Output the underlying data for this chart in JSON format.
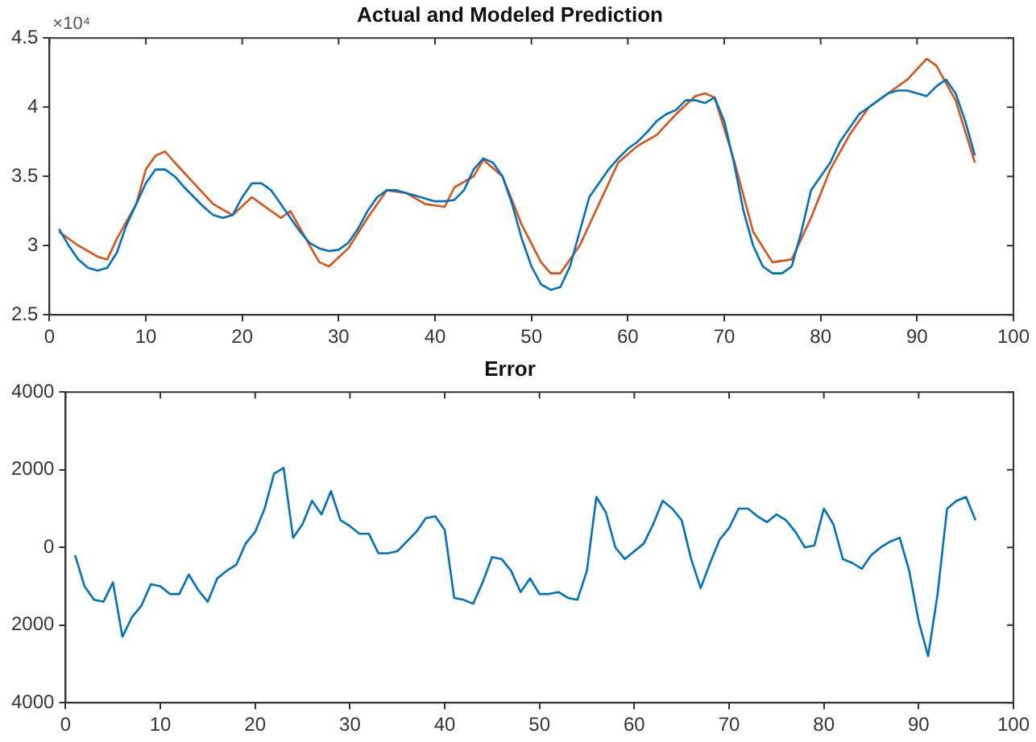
{
  "chart_data": [
    {
      "type": "line",
      "title": "Actual and Modeled Prediction",
      "xlim": [
        0,
        100
      ],
      "xticks": [
        0,
        10,
        20,
        30,
        40,
        50,
        60,
        70,
        80,
        90,
        100
      ],
      "ylim": [
        2.5,
        4.5
      ],
      "yticks": [
        2.5,
        3,
        3.5,
        4,
        4.5
      ],
      "annotations": [
        "×10⁴"
      ],
      "grid": false,
      "series": [
        {
          "color": "#0072bd",
          "x": [
            1,
            2,
            3,
            4,
            5,
            6,
            7,
            8,
            9,
            10,
            11,
            12,
            13,
            14,
            15,
            16,
            17,
            18,
            19,
            20,
            21,
            22,
            23,
            24,
            25,
            26,
            27,
            28,
            29,
            30,
            31,
            32,
            33,
            34,
            35,
            36,
            37,
            38,
            39,
            40,
            41,
            42,
            43,
            44,
            45,
            46,
            47,
            48,
            49,
            50,
            51,
            52,
            53,
            54,
            55,
            56,
            57,
            58,
            59,
            60,
            61,
            62,
            63,
            64,
            65,
            66,
            67,
            68,
            69,
            70,
            71,
            72,
            73,
            74,
            75,
            76,
            77,
            78,
            79,
            80,
            81,
            82,
            83,
            84,
            85,
            86,
            87,
            88,
            89,
            90,
            91,
            92,
            93,
            94,
            95,
            96
          ],
          "values": [
            3.12,
            3.0,
            2.9,
            2.84,
            2.82,
            2.84,
            2.95,
            3.15,
            3.3,
            3.45,
            3.55,
            3.55,
            3.5,
            3.42,
            3.35,
            3.28,
            3.22,
            3.2,
            3.22,
            3.35,
            3.45,
            3.45,
            3.4,
            3.3,
            3.2,
            3.1,
            3.02,
            2.98,
            2.96,
            2.97,
            3.02,
            3.12,
            3.25,
            3.35,
            3.4,
            3.4,
            3.38,
            3.36,
            3.34,
            3.32,
            3.32,
            3.33,
            3.4,
            3.55,
            3.63,
            3.6,
            3.5,
            3.3,
            3.05,
            2.85,
            2.72,
            2.68,
            2.7,
            2.85,
            3.1,
            3.35,
            3.45,
            3.55,
            3.63,
            3.7,
            3.75,
            3.82,
            3.9,
            3.95,
            3.98,
            4.05,
            4.05,
            4.03,
            4.07,
            3.9,
            3.6,
            3.25,
            3.0,
            2.85,
            2.8,
            2.8,
            2.85,
            3.1,
            3.4,
            3.5,
            3.6,
            3.75,
            3.85,
            3.95,
            4.0,
            4.05,
            4.1,
            4.12,
            4.12,
            4.1,
            4.08,
            4.15,
            4.2,
            4.1,
            3.9,
            3.65
          ]
        },
        {
          "color": "#d95319",
          "x": [
            1,
            3,
            5,
            6,
            7,
            9,
            10,
            11,
            12,
            13,
            15,
            17,
            19,
            21,
            22,
            24,
            25,
            27,
            28,
            29,
            31,
            33,
            35,
            37,
            39,
            41,
            42,
            44,
            45,
            47,
            49,
            51,
            52,
            53,
            55,
            57,
            59,
            61,
            63,
            65,
            67,
            68,
            69,
            71,
            73,
            75,
            77,
            79,
            81,
            83,
            85,
            87,
            89,
            91,
            92,
            94,
            96
          ],
          "values": [
            3.1,
            3.0,
            2.92,
            2.9,
            3.05,
            3.3,
            3.55,
            3.65,
            3.68,
            3.6,
            3.45,
            3.3,
            3.22,
            3.35,
            3.3,
            3.2,
            3.25,
            3.0,
            2.88,
            2.85,
            2.98,
            3.2,
            3.4,
            3.38,
            3.3,
            3.28,
            3.42,
            3.5,
            3.62,
            3.5,
            3.15,
            2.88,
            2.8,
            2.8,
            3.0,
            3.3,
            3.6,
            3.72,
            3.8,
            3.95,
            4.08,
            4.1,
            4.07,
            3.62,
            3.1,
            2.88,
            2.9,
            3.2,
            3.55,
            3.8,
            4.0,
            4.1,
            4.2,
            4.35,
            4.3,
            4.05,
            3.6
          ]
        }
      ]
    },
    {
      "type": "line",
      "title": "Error",
      "xlim": [
        0,
        100
      ],
      "xticks": [
        0,
        10,
        20,
        30,
        40,
        50,
        60,
        70,
        80,
        90,
        100
      ],
      "ylim": [
        -4000,
        4000
      ],
      "yticks": [
        {
          "value": -4000,
          "label": "4000"
        },
        {
          "value": -2000,
          "label": "2000"
        },
        0,
        2000,
        4000
      ],
      "grid": false,
      "series": [
        {
          "color": "#0072bd",
          "x": [
            1,
            2,
            3,
            4,
            5,
            6,
            7,
            8,
            9,
            10,
            11,
            12,
            13,
            14,
            15,
            16,
            17,
            18,
            19,
            20,
            21,
            22,
            23,
            24,
            25,
            26,
            27,
            28,
            29,
            30,
            31,
            32,
            33,
            34,
            35,
            36,
            37,
            38,
            39,
            40,
            41,
            42,
            43,
            44,
            45,
            46,
            47,
            48,
            49,
            50,
            51,
            52,
            53,
            54,
            55,
            56,
            57,
            58,
            59,
            60,
            61,
            62,
            63,
            64,
            65,
            66,
            67,
            68,
            69,
            70,
            71,
            72,
            73,
            74,
            75,
            76,
            77,
            78,
            79,
            80,
            81,
            82,
            83,
            84,
            85,
            86,
            87,
            88,
            89,
            90,
            91,
            92,
            93,
            94,
            95,
            96
          ],
          "values": [
            -200,
            -1000,
            -1350,
            -1400,
            -900,
            -2300,
            -1800,
            -1500,
            -950,
            -1000,
            -1200,
            -1200,
            -700,
            -1100,
            -1400,
            -800,
            -600,
            -450,
            100,
            400,
            1000,
            1900,
            2050,
            250,
            600,
            1200,
            850,
            1450,
            700,
            550,
            350,
            350,
            -150,
            -150,
            -100,
            150,
            400,
            750,
            800,
            450,
            -1300,
            -1350,
            -1450,
            -900,
            -250,
            -300,
            -600,
            -1150,
            -800,
            -1200,
            -1200,
            -1150,
            -1300,
            -1350,
            -600,
            1300,
            900,
            0,
            -300,
            -100,
            100,
            600,
            1200,
            1000,
            700,
            -300,
            -1050,
            -400,
            200,
            500,
            1000,
            1000,
            800,
            650,
            850,
            700,
            400,
            0,
            50,
            1000,
            600,
            -300,
            -400,
            -550,
            -200,
            0,
            150,
            250,
            -600,
            -1900,
            -2800,
            -1200,
            1000,
            1200,
            1300,
            700
          ]
        }
      ]
    }
  ]
}
